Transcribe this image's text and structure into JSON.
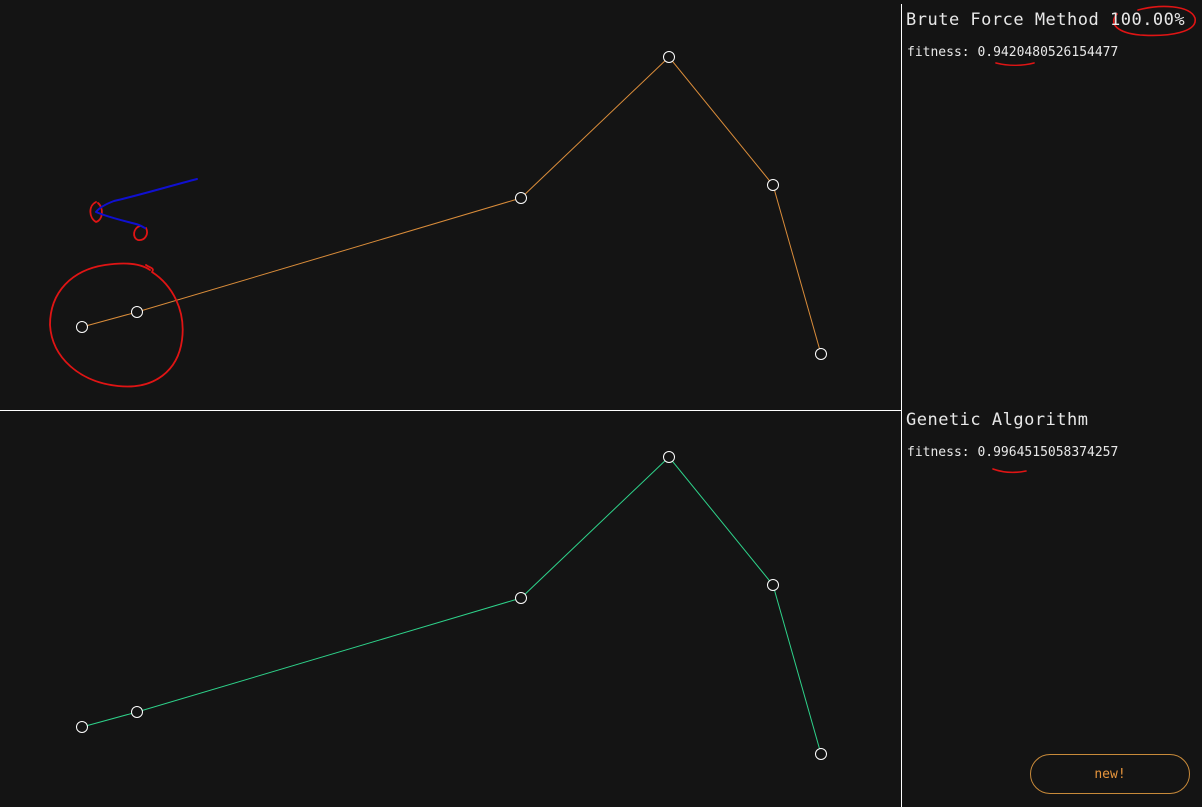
{
  "colors": {
    "background": "#141414",
    "brute_path": "#d98c3a",
    "genetic_path": "#2ed28a",
    "divider": "#ffffff",
    "node_stroke": "#ffffff",
    "annotation_red": "#e01414",
    "annotation_blue": "#1010d0",
    "button_text": "#e6953c"
  },
  "brute_force": {
    "title": "Brute Force Method",
    "progress": "100.00%",
    "fitness_label": "fitness:",
    "fitness_value": "0.9420480526154477"
  },
  "genetic": {
    "title": "Genetic Algorithm",
    "fitness_label": "fitness:",
    "fitness_value": "0.9964515058374257"
  },
  "button": {
    "label": "new!"
  }
}
